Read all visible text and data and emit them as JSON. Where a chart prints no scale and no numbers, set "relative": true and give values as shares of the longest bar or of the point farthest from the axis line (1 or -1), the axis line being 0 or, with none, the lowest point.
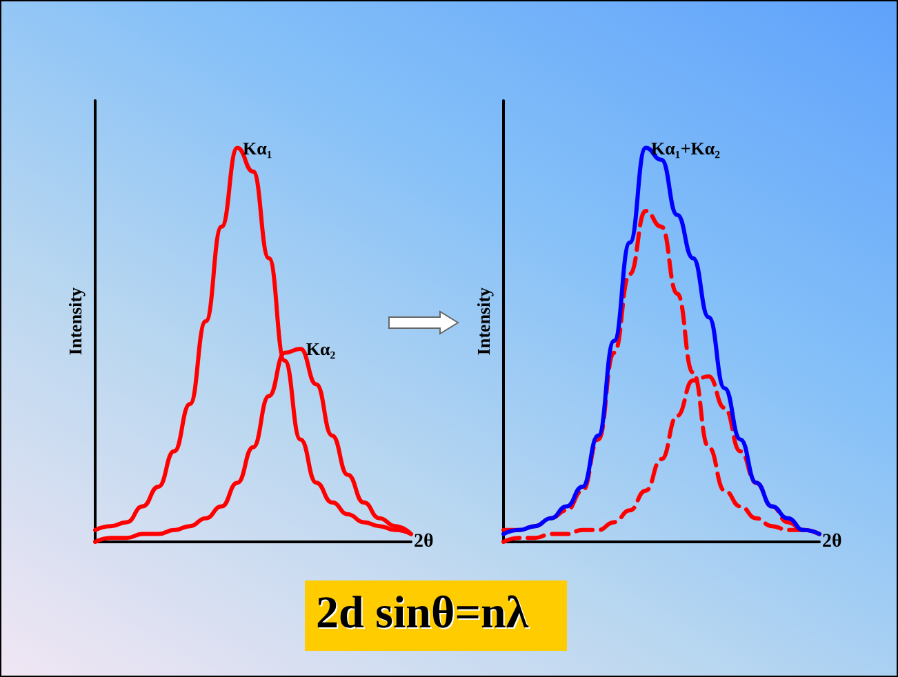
{
  "chart_data": [
    {
      "type": "line",
      "relative": true,
      "ylabel": "Intensity",
      "xlabel": "2θ",
      "tick_labels": false,
      "marker": "none",
      "line_style": "solid",
      "categories": [
        null,
        null,
        null,
        null,
        null,
        null,
        null,
        null,
        null,
        null,
        null,
        null,
        null,
        null,
        null,
        null,
        null,
        null,
        null,
        null,
        null
      ],
      "series": [
        {
          "name": "Kα₁",
          "color": "#ff0000",
          "values": [
            0.03,
            0.04,
            0.05,
            0.09,
            0.14,
            0.23,
            0.35,
            0.56,
            0.8,
            1.0,
            0.94,
            0.72,
            0.46,
            0.26,
            0.15,
            0.1,
            0.07,
            0.05,
            0.04,
            0.03,
            0.02
          ]
        },
        {
          "name": "Kα₂",
          "color": "#ff0000",
          "values": [
            0.0,
            0.01,
            0.01,
            0.02,
            0.02,
            0.03,
            0.04,
            0.06,
            0.09,
            0.15,
            0.24,
            0.37,
            0.48,
            0.49,
            0.4,
            0.27,
            0.17,
            0.1,
            0.06,
            0.04,
            0.02
          ]
        }
      ]
    },
    {
      "type": "line",
      "relative": true,
      "ylabel": "Intensity",
      "xlabel": "2θ",
      "tick_labels": false,
      "marker": "none",
      "categories": [
        null,
        null,
        null,
        null,
        null,
        null,
        null,
        null,
        null,
        null,
        null,
        null,
        null,
        null,
        null,
        null,
        null,
        null,
        null,
        null,
        null
      ],
      "annotations": [
        "2d sinθ=nλ"
      ],
      "series": [
        {
          "color": "#ff0000",
          "line_style": "dashed",
          "values": [
            0.03,
            0.03,
            0.04,
            0.06,
            0.08,
            0.13,
            0.26,
            0.48,
            0.68,
            0.84,
            0.8,
            0.63,
            0.43,
            0.24,
            0.13,
            0.09,
            0.06,
            0.04,
            0.03,
            0.03,
            0.02
          ]
        },
        {
          "color": "#ff0000",
          "line_style": "dashed",
          "values": [
            0.0,
            0.01,
            0.01,
            0.02,
            0.02,
            0.03,
            0.03,
            0.05,
            0.08,
            0.13,
            0.21,
            0.32,
            0.41,
            0.42,
            0.34,
            0.23,
            0.15,
            0.09,
            0.05,
            0.03,
            0.02
          ]
        },
        {
          "name": "Kα₁+Kα₂",
          "color": "#0000ff",
          "line_style": "solid",
          "values": [
            0.02,
            0.03,
            0.04,
            0.06,
            0.09,
            0.14,
            0.27,
            0.51,
            0.76,
            1.0,
            0.97,
            0.83,
            0.72,
            0.57,
            0.39,
            0.26,
            0.15,
            0.09,
            0.06,
            0.03,
            0.02
          ]
        }
      ]
    }
  ]
}
